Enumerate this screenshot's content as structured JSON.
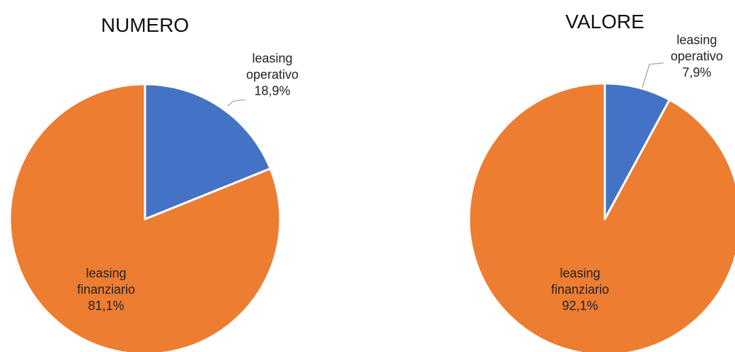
{
  "chart_data": [
    {
      "type": "pie",
      "title": "NUMERO",
      "categories": [
        "leasing operativo",
        "leasing finanziario"
      ],
      "values": [
        18.9,
        81.1
      ],
      "value_labels": [
        "18,9%",
        "81,1%"
      ],
      "colors": [
        "#4472c4",
        "#ed7d31"
      ]
    },
    {
      "type": "pie",
      "title": "VALORE",
      "categories": [
        "leasing operativo",
        "leasing finanziario"
      ],
      "values": [
        7.9,
        92.1
      ],
      "value_labels": [
        "7,9%",
        "92,1%"
      ],
      "colors": [
        "#4472c4",
        "#ed7d31"
      ]
    }
  ]
}
